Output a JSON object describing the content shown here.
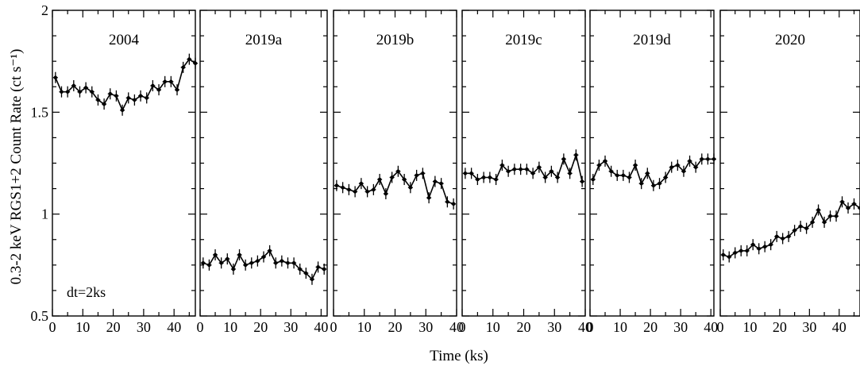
{
  "chart_data": {
    "type": "line",
    "ylabel": "0.3-2 keV RGS1+2 Count Rate (ct s⁻¹)",
    "xlabel": "Time (ks)",
    "annotation": "dt=2ks",
    "ylim": [
      0.5,
      2
    ],
    "y_ticks": [
      0.5,
      1,
      1.5,
      2
    ],
    "y_tick_labels": [
      "0.5",
      "1",
      "1.5",
      "2"
    ],
    "panels": [
      {
        "name": "2004",
        "xlim": [
          0,
          47
        ],
        "x_ticks": [
          0,
          10,
          20,
          30,
          40
        ],
        "x": [
          1,
          3,
          5,
          7,
          9,
          11,
          13,
          15,
          17,
          19,
          21,
          23,
          25,
          27,
          29,
          31,
          33,
          35,
          37,
          39,
          41,
          43,
          45,
          47
        ],
        "y": [
          1.67,
          1.6,
          1.6,
          1.63,
          1.6,
          1.62,
          1.6,
          1.56,
          1.54,
          1.59,
          1.58,
          1.51,
          1.57,
          1.56,
          1.58,
          1.57,
          1.63,
          1.61,
          1.65,
          1.65,
          1.61,
          1.72,
          1.76,
          1.74
        ]
      },
      {
        "name": "2019a",
        "xlim": [
          0,
          42
        ],
        "x_ticks": [
          0,
          10,
          20,
          30,
          40
        ],
        "x": [
          1,
          3,
          5,
          7,
          9,
          11,
          13,
          15,
          17,
          19,
          21,
          23,
          25,
          27,
          29,
          31,
          33,
          35,
          37,
          39,
          41
        ],
        "y": [
          0.76,
          0.75,
          0.8,
          0.76,
          0.78,
          0.73,
          0.8,
          0.75,
          0.76,
          0.77,
          0.79,
          0.82,
          0.76,
          0.77,
          0.76,
          0.76,
          0.73,
          0.71,
          0.68,
          0.74,
          0.73
        ]
      },
      {
        "name": "2019b",
        "xlim": [
          0,
          40
        ],
        "x_ticks": [
          0,
          10,
          20,
          30,
          40
        ],
        "x": [
          1,
          3,
          5,
          7,
          9,
          11,
          13,
          15,
          17,
          19,
          21,
          23,
          25,
          27,
          29,
          31,
          33,
          35,
          37,
          39
        ],
        "y": [
          1.14,
          1.13,
          1.12,
          1.11,
          1.15,
          1.11,
          1.12,
          1.17,
          1.1,
          1.18,
          1.21,
          1.17,
          1.13,
          1.19,
          1.2,
          1.08,
          1.16,
          1.15,
          1.06,
          1.05
        ]
      },
      {
        "name": "2019c",
        "xlim": [
          0,
          40
        ],
        "x_ticks": [
          0,
          10,
          20,
          30,
          40
        ],
        "x": [
          1,
          3,
          5,
          7,
          9,
          11,
          13,
          15,
          17,
          19,
          21,
          23,
          25,
          27,
          29,
          31,
          33,
          35,
          37,
          39
        ],
        "y": [
          1.2,
          1.2,
          1.17,
          1.18,
          1.18,
          1.17,
          1.24,
          1.21,
          1.22,
          1.22,
          1.22,
          1.2,
          1.23,
          1.18,
          1.21,
          1.18,
          1.27,
          1.2,
          1.29,
          1.16
        ]
      },
      {
        "name": "2019d",
        "xlim": [
          0,
          41
        ],
        "x_ticks": [
          0,
          10,
          20,
          30,
          40
        ],
        "x": [
          1,
          3,
          5,
          7,
          9,
          11,
          13,
          15,
          17,
          19,
          21,
          23,
          25,
          27,
          29,
          31,
          33,
          35,
          37,
          39,
          41
        ],
        "y": [
          1.17,
          1.24,
          1.26,
          1.21,
          1.19,
          1.19,
          1.18,
          1.24,
          1.15,
          1.2,
          1.14,
          1.15,
          1.18,
          1.23,
          1.24,
          1.21,
          1.26,
          1.23,
          1.27,
          1.27,
          1.27
        ]
      },
      {
        "name": "2020",
        "xlim": [
          0,
          47
        ],
        "x_ticks": [
          0,
          10,
          20,
          30,
          40
        ],
        "x": [
          1,
          3,
          5,
          7,
          9,
          11,
          13,
          15,
          17,
          19,
          21,
          23,
          25,
          27,
          29,
          31,
          33,
          35,
          37,
          39,
          41,
          43,
          45,
          47
        ],
        "y": [
          0.8,
          0.79,
          0.81,
          0.82,
          0.82,
          0.85,
          0.83,
          0.84,
          0.85,
          0.89,
          0.88,
          0.89,
          0.92,
          0.94,
          0.93,
          0.96,
          1.02,
          0.96,
          0.99,
          0.99,
          1.06,
          1.03,
          1.05,
          1.03
        ]
      }
    ]
  }
}
